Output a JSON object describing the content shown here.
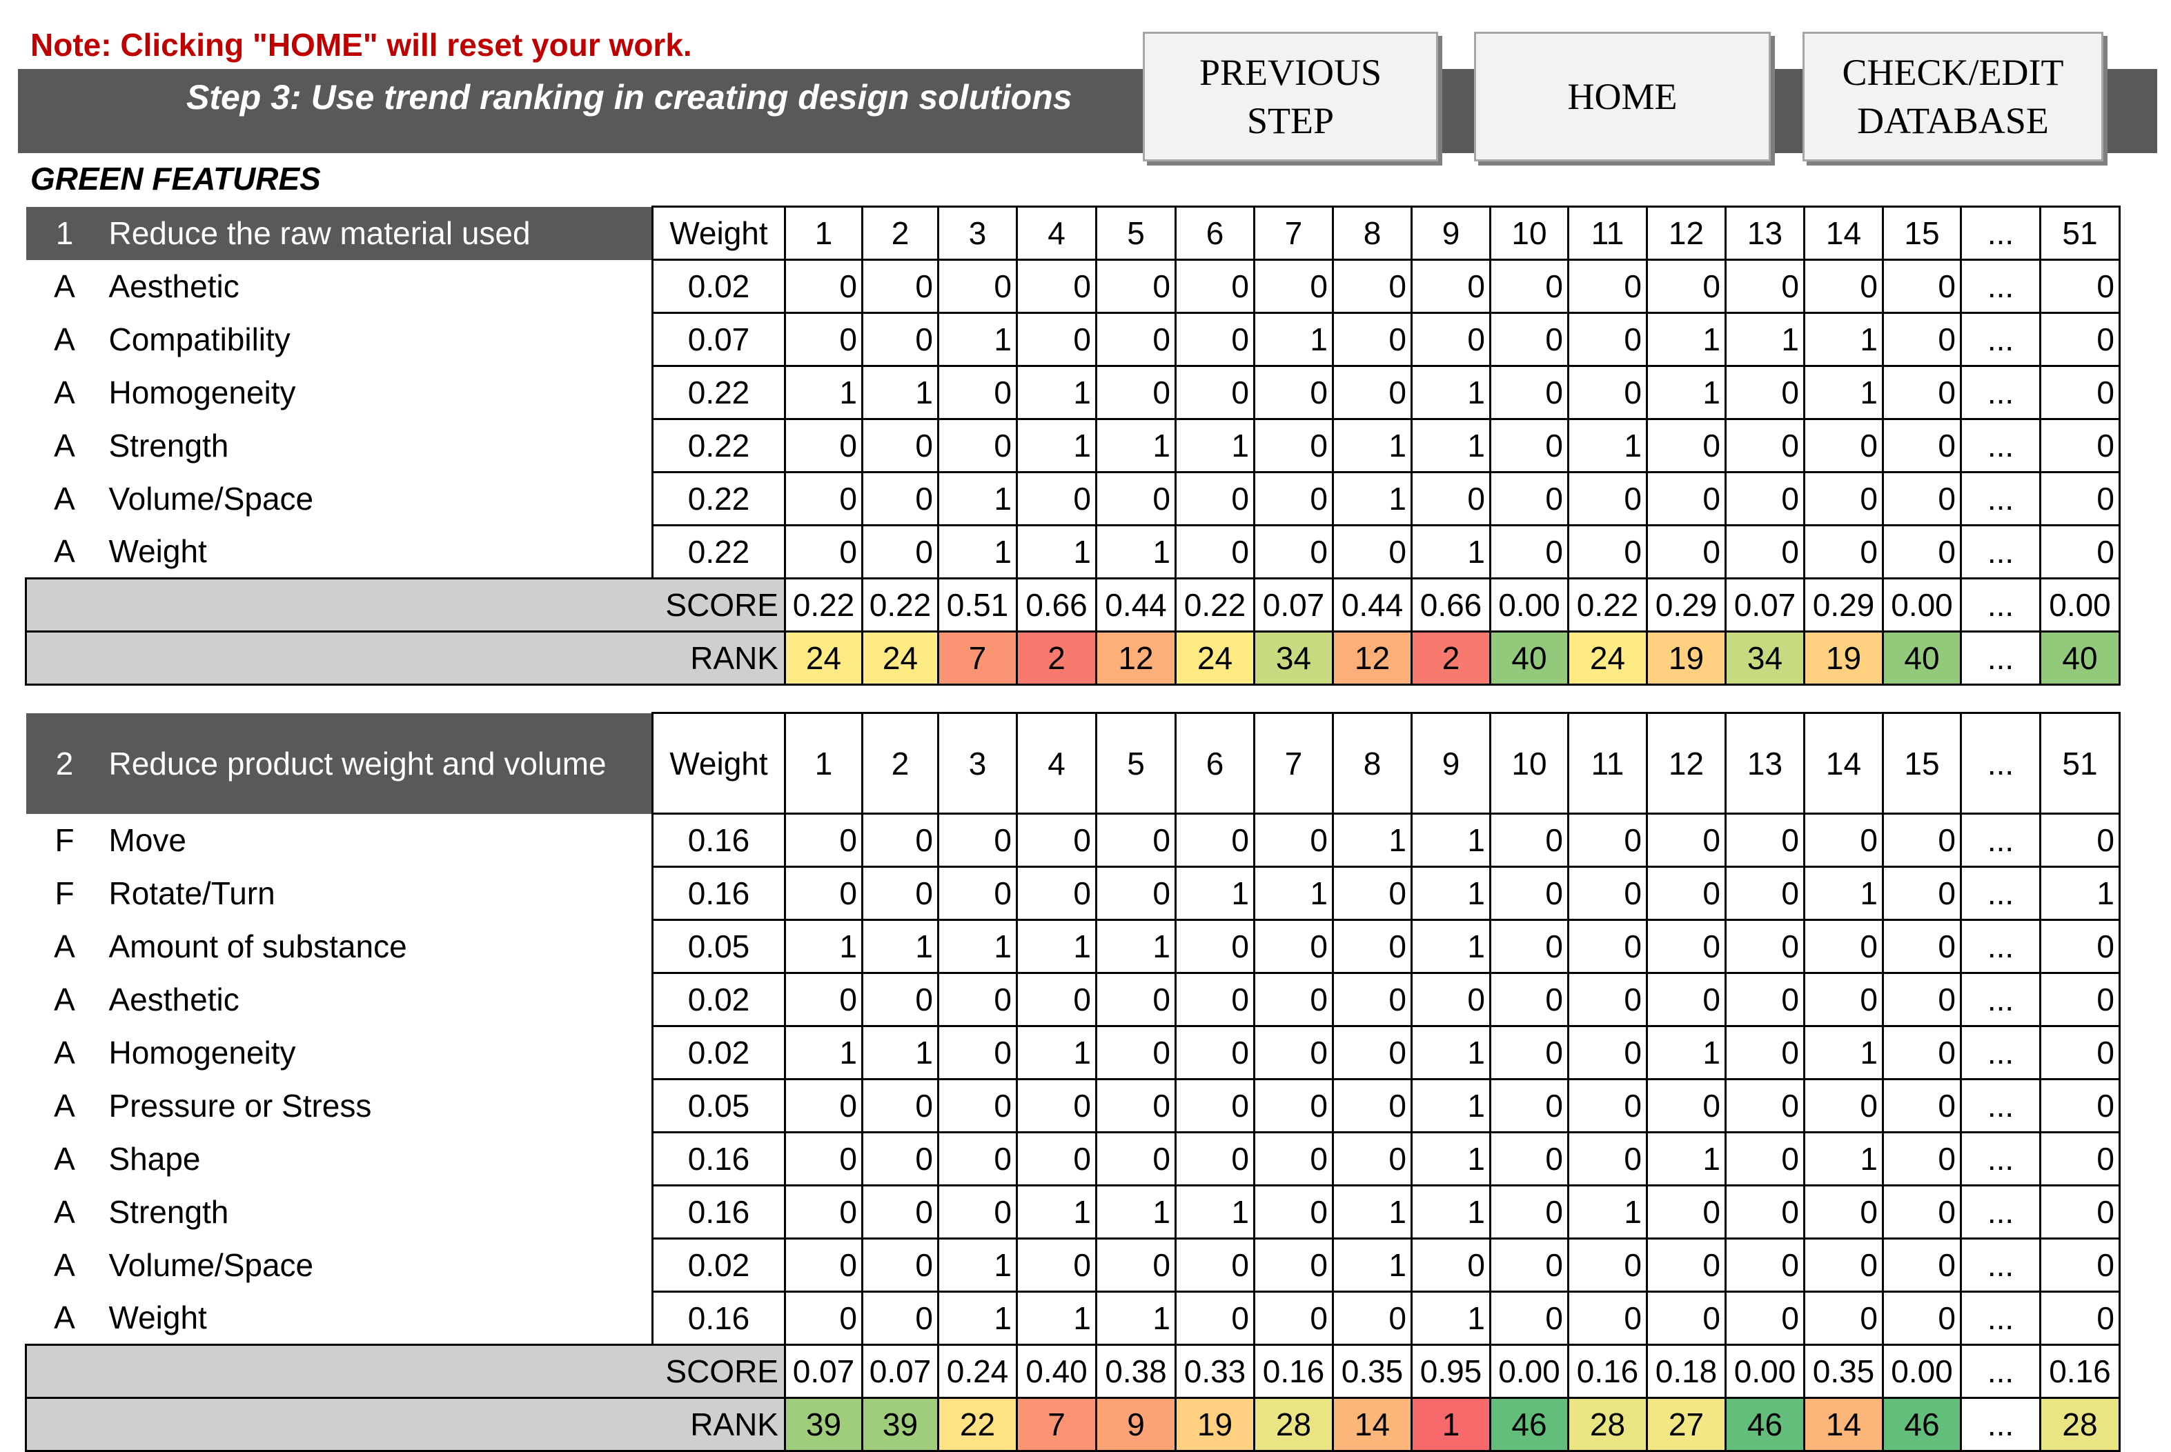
{
  "note": "Note: Clicking \"HOME\" will reset your work.",
  "step_title": "Step 3: Use trend ranking in creating design solutions",
  "buttons": {
    "previous": "PREVIOUS\nSTEP",
    "home": "HOME",
    "check_edit": "CHECK/EDIT\nDATABASE"
  },
  "section_title": "GREEN FEATURES",
  "columns": [
    "1",
    "2",
    "3",
    "4",
    "5",
    "6",
    "7",
    "8",
    "9",
    "10",
    "11",
    "12",
    "13",
    "14",
    "15",
    "...",
    "51"
  ],
  "weight_label": "Weight",
  "score_label": "SCORE",
  "rank_label": "RANK",
  "rank_colors": {
    "1": "#f8696b",
    "2": "#f8796e",
    "7": "#fa9473",
    "9": "#fba276",
    "12": "#fcaf78",
    "14": "#fcb679",
    "19": "#fed07f",
    "22": "#ffe283",
    "24": "#ffeb84",
    "27": "#f2e784",
    "28": "#e9e583",
    "34": "#c8da80",
    "39": "#a0cd7c",
    "40": "#93c97a",
    "46": "#63be7b"
  },
  "tables": [
    {
      "number": "1",
      "title": "Reduce the raw material used",
      "rows": [
        {
          "type": "A",
          "name": "Aesthetic",
          "weight": "0.02",
          "values": [
            "0",
            "0",
            "0",
            "0",
            "0",
            "0",
            "0",
            "0",
            "0",
            "0",
            "0",
            "0",
            "0",
            "0",
            "0",
            "...",
            "0"
          ]
        },
        {
          "type": "A",
          "name": "Compatibility",
          "weight": "0.07",
          "values": [
            "0",
            "0",
            "1",
            "0",
            "0",
            "0",
            "1",
            "0",
            "0",
            "0",
            "0",
            "1",
            "1",
            "1",
            "0",
            "...",
            "0"
          ]
        },
        {
          "type": "A",
          "name": "Homogeneity",
          "weight": "0.22",
          "values": [
            "1",
            "1",
            "0",
            "1",
            "0",
            "0",
            "0",
            "0",
            "1",
            "0",
            "0",
            "1",
            "0",
            "1",
            "0",
            "...",
            "0"
          ]
        },
        {
          "type": "A",
          "name": "Strength",
          "weight": "0.22",
          "values": [
            "0",
            "0",
            "0",
            "1",
            "1",
            "1",
            "0",
            "1",
            "1",
            "0",
            "1",
            "0",
            "0",
            "0",
            "0",
            "...",
            "0"
          ]
        },
        {
          "type": "A",
          "name": "Volume/Space",
          "weight": "0.22",
          "values": [
            "0",
            "0",
            "1",
            "0",
            "0",
            "0",
            "0",
            "1",
            "0",
            "0",
            "0",
            "0",
            "0",
            "0",
            "0",
            "...",
            "0"
          ]
        },
        {
          "type": "A",
          "name": "Weight",
          "weight": "0.22",
          "values": [
            "0",
            "0",
            "1",
            "1",
            "1",
            "0",
            "0",
            "0",
            "1",
            "0",
            "0",
            "0",
            "0",
            "0",
            "0",
            "...",
            "0"
          ]
        }
      ],
      "scores": [
        "0.22",
        "0.22",
        "0.51",
        "0.66",
        "0.44",
        "0.22",
        "0.07",
        "0.44",
        "0.66",
        "0.00",
        "0.22",
        "0.29",
        "0.07",
        "0.29",
        "0.00",
        "...",
        "0.00"
      ],
      "ranks": [
        "24",
        "24",
        "7",
        "2",
        "12",
        "24",
        "34",
        "12",
        "2",
        "40",
        "24",
        "19",
        "34",
        "19",
        "40",
        "...",
        "40"
      ]
    },
    {
      "number": "2",
      "title": "Reduce product weight and volume",
      "rows": [
        {
          "type": "F",
          "name": "Move",
          "weight": "0.16",
          "values": [
            "0",
            "0",
            "0",
            "0",
            "0",
            "0",
            "0",
            "1",
            "1",
            "0",
            "0",
            "0",
            "0",
            "0",
            "0",
            "...",
            "0"
          ]
        },
        {
          "type": "F",
          "name": "Rotate/Turn",
          "weight": "0.16",
          "values": [
            "0",
            "0",
            "0",
            "0",
            "0",
            "1",
            "1",
            "0",
            "1",
            "0",
            "0",
            "0",
            "0",
            "1",
            "0",
            "...",
            "1"
          ]
        },
        {
          "type": "A",
          "name": "Amount of substance",
          "weight": "0.05",
          "values": [
            "1",
            "1",
            "1",
            "1",
            "1",
            "0",
            "0",
            "0",
            "1",
            "0",
            "0",
            "0",
            "0",
            "0",
            "0",
            "...",
            "0"
          ]
        },
        {
          "type": "A",
          "name": "Aesthetic",
          "weight": "0.02",
          "values": [
            "0",
            "0",
            "0",
            "0",
            "0",
            "0",
            "0",
            "0",
            "0",
            "0",
            "0",
            "0",
            "0",
            "0",
            "0",
            "...",
            "0"
          ]
        },
        {
          "type": "A",
          "name": "Homogeneity",
          "weight": "0.02",
          "values": [
            "1",
            "1",
            "0",
            "1",
            "0",
            "0",
            "0",
            "0",
            "1",
            "0",
            "0",
            "1",
            "0",
            "1",
            "0",
            "...",
            "0"
          ]
        },
        {
          "type": "A",
          "name": "Pressure or Stress",
          "weight": "0.05",
          "values": [
            "0",
            "0",
            "0",
            "0",
            "0",
            "0",
            "0",
            "0",
            "1",
            "0",
            "0",
            "0",
            "0",
            "0",
            "0",
            "...",
            "0"
          ]
        },
        {
          "type": "A",
          "name": "Shape",
          "weight": "0.16",
          "values": [
            "0",
            "0",
            "0",
            "0",
            "0",
            "0",
            "0",
            "0",
            "1",
            "0",
            "0",
            "1",
            "0",
            "1",
            "0",
            "...",
            "0"
          ]
        },
        {
          "type": "A",
          "name": "Strength",
          "weight": "0.16",
          "values": [
            "0",
            "0",
            "0",
            "1",
            "1",
            "1",
            "0",
            "1",
            "1",
            "0",
            "1",
            "0",
            "0",
            "0",
            "0",
            "...",
            "0"
          ]
        },
        {
          "type": "A",
          "name": "Volume/Space",
          "weight": "0.02",
          "values": [
            "0",
            "0",
            "1",
            "0",
            "0",
            "0",
            "0",
            "1",
            "0",
            "0",
            "0",
            "0",
            "0",
            "0",
            "0",
            "...",
            "0"
          ]
        },
        {
          "type": "A",
          "name": "Weight",
          "weight": "0.16",
          "values": [
            "0",
            "0",
            "1",
            "1",
            "1",
            "0",
            "0",
            "0",
            "1",
            "0",
            "0",
            "0",
            "0",
            "0",
            "0",
            "...",
            "0"
          ]
        }
      ],
      "scores": [
        "0.07",
        "0.07",
        "0.24",
        "0.40",
        "0.38",
        "0.33",
        "0.16",
        "0.35",
        "0.95",
        "0.00",
        "0.16",
        "0.18",
        "0.00",
        "0.35",
        "0.00",
        "...",
        "0.16"
      ],
      "ranks": [
        "39",
        "39",
        "22",
        "7",
        "9",
        "19",
        "28",
        "14",
        "1",
        "46",
        "28",
        "27",
        "46",
        "14",
        "46",
        "...",
        "28"
      ]
    }
  ]
}
